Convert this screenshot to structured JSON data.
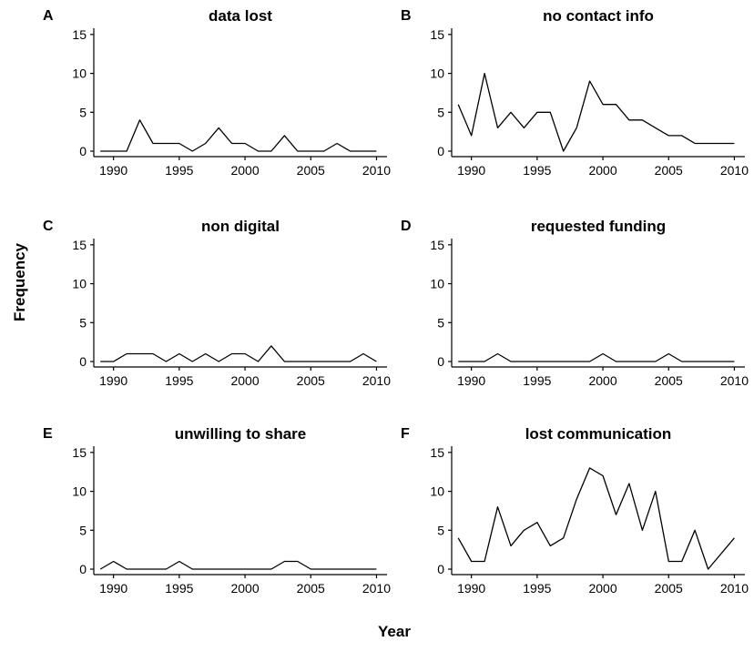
{
  "axis_titles": {
    "x": "Year",
    "y": "Frequency"
  },
  "line_color": "#000000",
  "chart_data": [
    {
      "type": "line",
      "panel": "A",
      "title": "data lost",
      "x": [
        1989,
        1990,
        1991,
        1992,
        1993,
        1994,
        1995,
        1996,
        1997,
        1998,
        1999,
        2000,
        2001,
        2002,
        2003,
        2004,
        2005,
        2006,
        2007,
        2008,
        2009,
        2010
      ],
      "values": [
        0,
        0,
        0,
        4,
        1,
        1,
        1,
        0,
        1,
        3,
        1,
        1,
        0,
        0,
        2,
        0,
        0,
        0,
        1,
        0,
        0,
        0
      ],
      "xticks": [
        1990,
        1995,
        2000,
        2005,
        2010
      ],
      "yticks": [
        0,
        5,
        10,
        15
      ],
      "xlim": [
        1988.5,
        2010.8
      ],
      "ylim": [
        -0.7,
        15.8
      ]
    },
    {
      "type": "line",
      "panel": "B",
      "title": "no contact info",
      "x": [
        1989,
        1990,
        1991,
        1992,
        1993,
        1994,
        1995,
        1996,
        1997,
        1998,
        1999,
        2000,
        2001,
        2002,
        2003,
        2004,
        2005,
        2006,
        2007,
        2008,
        2009,
        2010
      ],
      "values": [
        6,
        2,
        10,
        3,
        5,
        3,
        5,
        5,
        0,
        3,
        9,
        6,
        6,
        4,
        4,
        3,
        2,
        2,
        1,
        1,
        1,
        1
      ],
      "xticks": [
        1990,
        1995,
        2000,
        2005,
        2010
      ],
      "yticks": [
        0,
        5,
        10,
        15
      ],
      "xlim": [
        1988.5,
        2010.8
      ],
      "ylim": [
        -0.7,
        15.8
      ]
    },
    {
      "type": "line",
      "panel": "C",
      "title": "non digital",
      "x": [
        1989,
        1990,
        1991,
        1992,
        1993,
        1994,
        1995,
        1996,
        1997,
        1998,
        1999,
        2000,
        2001,
        2002,
        2003,
        2004,
        2005,
        2006,
        2007,
        2008,
        2009,
        2010
      ],
      "values": [
        0,
        0,
        1,
        1,
        1,
        0,
        1,
        0,
        1,
        0,
        1,
        1,
        0,
        2,
        0,
        0,
        0,
        0,
        0,
        0,
        1,
        0
      ],
      "xticks": [
        1990,
        1995,
        2000,
        2005,
        2010
      ],
      "yticks": [
        0,
        5,
        10,
        15
      ],
      "xlim": [
        1988.5,
        2010.8
      ],
      "ylim": [
        -0.7,
        15.8
      ]
    },
    {
      "type": "line",
      "panel": "D",
      "title": "requested funding",
      "x": [
        1989,
        1990,
        1991,
        1992,
        1993,
        1994,
        1995,
        1996,
        1997,
        1998,
        1999,
        2000,
        2001,
        2002,
        2003,
        2004,
        2005,
        2006,
        2007,
        2008,
        2009,
        2010
      ],
      "values": [
        0,
        0,
        0,
        1,
        0,
        0,
        0,
        0,
        0,
        0,
        0,
        1,
        0,
        0,
        0,
        0,
        1,
        0,
        0,
        0,
        0,
        0
      ],
      "xticks": [
        1990,
        1995,
        2000,
        2005,
        2010
      ],
      "yticks": [
        0,
        5,
        10,
        15
      ],
      "xlim": [
        1988.5,
        2010.8
      ],
      "ylim": [
        -0.7,
        15.8
      ]
    },
    {
      "type": "line",
      "panel": "E",
      "title": "unwilling to share",
      "x": [
        1989,
        1990,
        1991,
        1992,
        1993,
        1994,
        1995,
        1996,
        1997,
        1998,
        1999,
        2000,
        2001,
        2002,
        2003,
        2004,
        2005,
        2006,
        2007,
        2008,
        2009,
        2010
      ],
      "values": [
        0,
        1,
        0,
        0,
        0,
        0,
        1,
        0,
        0,
        0,
        0,
        0,
        0,
        0,
        1,
        1,
        0,
        0,
        0,
        0,
        0,
        0
      ],
      "xticks": [
        1990,
        1995,
        2000,
        2005,
        2010
      ],
      "yticks": [
        0,
        5,
        10,
        15
      ],
      "xlim": [
        1988.5,
        2010.8
      ],
      "ylim": [
        -0.7,
        15.8
      ]
    },
    {
      "type": "line",
      "panel": "F",
      "title": "lost communication",
      "x": [
        1989,
        1990,
        1991,
        1992,
        1993,
        1994,
        1995,
        1996,
        1997,
        1998,
        1999,
        2000,
        2001,
        2002,
        2003,
        2004,
        2005,
        2006,
        2007,
        2008,
        2010
      ],
      "values": [
        4,
        1,
        1,
        8,
        3,
        5,
        6,
        3,
        4,
        9,
        13,
        12,
        7,
        11,
        5,
        10,
        1,
        1,
        5,
        0,
        4
      ],
      "xticks": [
        1990,
        1995,
        2000,
        2005,
        2010
      ],
      "yticks": [
        0,
        5,
        10,
        15
      ],
      "xlim": [
        1988.5,
        2010.8
      ],
      "ylim": [
        -0.7,
        15.8
      ]
    }
  ]
}
